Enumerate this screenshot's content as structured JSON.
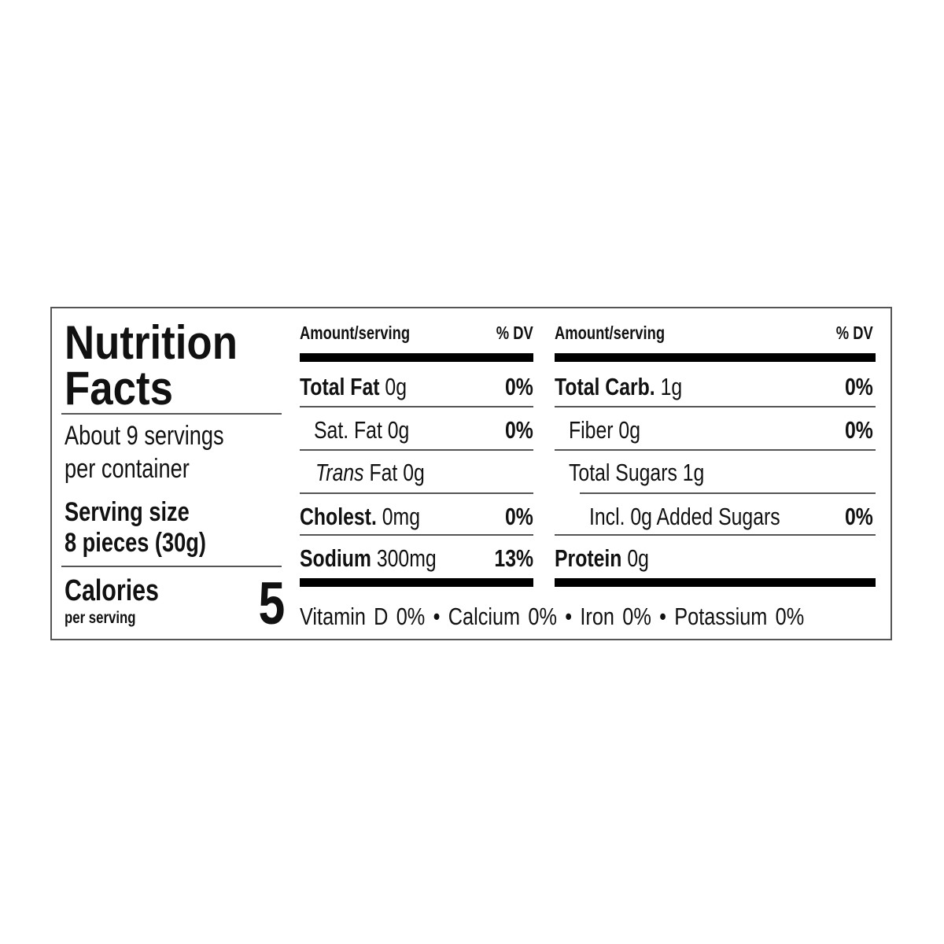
{
  "title_line1": "Nutrition",
  "title_line2": "Facts",
  "servings_line1": "About 9 servings",
  "servings_line2": "per container",
  "serving_size_label": "Serving size",
  "serving_size_value": "8 pieces (30g)",
  "calories_label": "Calories",
  "calories_sub": "per serving",
  "calories_value": "5",
  "header_amount": "Amount/serving",
  "header_dv": "% DV",
  "left_rows": [
    {
      "name": "Total Fat",
      "amount": "0g",
      "dv": "0%"
    },
    {
      "name": "Sat. Fat",
      "amount": "0g",
      "dv": "0%"
    },
    {
      "name_italic": "Trans",
      "name": "Fat",
      "amount": "0g",
      "dv": ""
    },
    {
      "name": "Cholest.",
      "amount": "0mg",
      "dv": "0%"
    },
    {
      "name": "Sodium",
      "amount": "300mg",
      "dv": "13%"
    }
  ],
  "right_rows": [
    {
      "name": "Total Carb.",
      "amount": "1g",
      "dv": "0%"
    },
    {
      "name": "Fiber",
      "amount": "0g",
      "dv": "0%"
    },
    {
      "name": "Total Sugars",
      "amount": "1g",
      "dv": ""
    },
    {
      "name": "Incl. 0g Added Sugars",
      "amount": "",
      "dv": "0%"
    },
    {
      "name": "Protein",
      "amount": "0g",
      "dv": ""
    }
  ],
  "vitamins": "Vitamin D 0% • Calcium 0% • Iron 0% • Potassium 0%"
}
